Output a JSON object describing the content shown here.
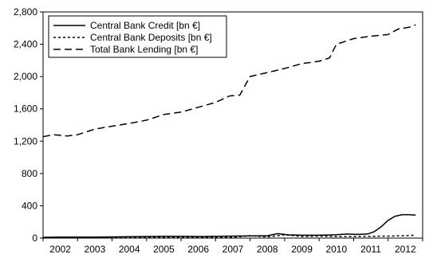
{
  "chart_data": {
    "type": "line",
    "title": "",
    "xlabel": "",
    "ylabel": "",
    "x_range": [
      2001.5,
      2012.5
    ],
    "y_range": [
      0,
      2800
    ],
    "x_ticks": [
      2002,
      2003,
      2004,
      2005,
      2006,
      2007,
      2008,
      2009,
      2010,
      2011,
      2012
    ],
    "x_tick_labels": [
      "2002",
      "2003",
      "2004",
      "2005",
      "2006",
      "2007",
      "2008",
      "2009",
      "2010",
      "2011",
      "2012"
    ],
    "y_ticks": [
      0,
      400,
      800,
      1200,
      1600,
      2000,
      2400,
      2800
    ],
    "y_tick_labels": [
      "0",
      "400",
      "800",
      "1,200",
      "1,600",
      "2,000",
      "2,400",
      "2,800"
    ],
    "grid": false,
    "legend_position": "top-left",
    "series": [
      {
        "name": "Central Bank Credit [bn €]",
        "dash": "solid",
        "color": "#000000",
        "x": [
          2001.5,
          2002.0,
          2002.5,
          2003.0,
          2003.5,
          2004.0,
          2004.5,
          2005.0,
          2005.5,
          2006.0,
          2006.5,
          2007.0,
          2007.5,
          2008.0,
          2008.3,
          2008.6,
          2009.0,
          2009.5,
          2010.0,
          2010.3,
          2010.6,
          2010.9,
          2011.1,
          2011.3,
          2011.5,
          2011.7,
          2011.9,
          2012.1,
          2012.3
        ],
        "y": [
          10,
          12,
          12,
          13,
          15,
          18,
          20,
          22,
          22,
          20,
          22,
          25,
          28,
          30,
          55,
          40,
          35,
          35,
          42,
          50,
          45,
          50,
          80,
          140,
          220,
          270,
          290,
          290,
          285
        ]
      },
      {
        "name": "Central Bank Deposits [bn €]",
        "dash": "dotted",
        "color": "#000000",
        "x": [
          2001.5,
          2002.0,
          2003.0,
          2004.0,
          2005.0,
          2006.0,
          2007.0,
          2007.5,
          2008.0,
          2008.5,
          2009.0,
          2009.5,
          2010.0,
          2010.5,
          2011.0,
          2011.5,
          2012.0,
          2012.3
        ],
        "y": [
          5,
          5,
          5,
          6,
          8,
          8,
          10,
          30,
          15,
          40,
          20,
          25,
          20,
          20,
          22,
          25,
          30,
          35
        ]
      },
      {
        "name": "Total Bank Lending [bn €]",
        "dash": "dashed",
        "color": "#000000",
        "x": [
          2001.5,
          2001.8,
          2002.2,
          2002.5,
          2003.0,
          2003.5,
          2004.0,
          2004.5,
          2005.0,
          2005.5,
          2006.0,
          2006.5,
          2006.9,
          2007.2,
          2007.5,
          2008.0,
          2008.5,
          2009.0,
          2009.5,
          2009.8,
          2010.0,
          2010.5,
          2011.0,
          2011.5,
          2011.8,
          2012.1,
          2012.3
        ],
        "y": [
          1255,
          1280,
          1265,
          1280,
          1350,
          1385,
          1420,
          1460,
          1530,
          1560,
          1620,
          1680,
          1760,
          1770,
          2000,
          2050,
          2100,
          2160,
          2190,
          2230,
          2400,
          2470,
          2500,
          2520,
          2590,
          2610,
          2640
        ]
      }
    ]
  }
}
